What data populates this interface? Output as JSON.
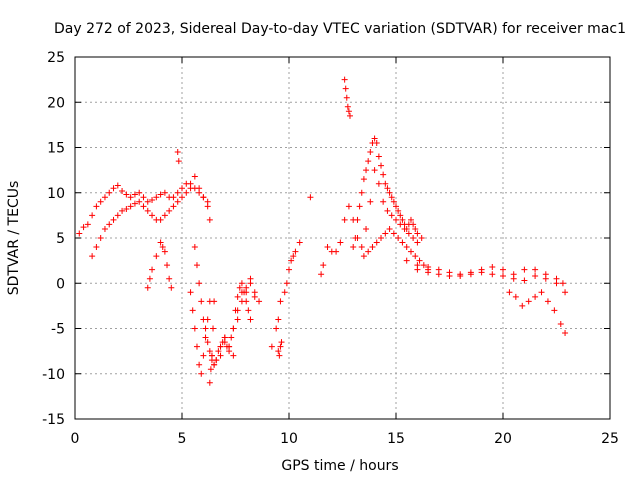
{
  "chart_data": {
    "type": "scatter",
    "title": "Day 272 of 2023, Sidereal Day-to-day VTEC variation (SDTVAR) for receiver mac1",
    "xlabel": "GPS time / hours",
    "ylabel": "SDTVAR / TECUs",
    "xlim": [
      0,
      25
    ],
    "ylim": [
      -15,
      25
    ],
    "xticks": [
      0,
      5,
      10,
      15,
      20,
      25
    ],
    "yticks": [
      -15,
      -10,
      -5,
      0,
      5,
      10,
      15,
      20,
      25
    ],
    "xtick_labels": [
      "0",
      "5",
      "10",
      "15",
      "20",
      "25"
    ],
    "ytick_labels": [
      "-15",
      "-10",
      "-5",
      "0",
      "5",
      "10",
      "15",
      "20",
      "25"
    ],
    "grid": true,
    "marker": "+",
    "color": "#ff0000",
    "series": [
      {
        "name": "SDTVAR",
        "x": [
          0.2,
          0.4,
          0.6,
          0.8,
          1.0,
          1.2,
          1.4,
          1.6,
          1.8,
          2.0,
          2.2,
          2.4,
          2.6,
          2.8,
          3.0,
          3.2,
          3.4,
          3.6,
          3.8,
          4.0,
          4.2,
          4.4,
          4.6,
          4.8,
          5.0,
          5.2,
          5.4,
          5.6,
          5.8,
          6.0,
          6.2,
          6.3,
          0.8,
          1.0,
          1.2,
          1.4,
          1.6,
          1.8,
          2.0,
          2.2,
          2.4,
          2.6,
          2.8,
          3.0,
          3.2,
          3.4,
          3.6,
          3.8,
          4.0,
          4.2,
          4.4,
          4.6,
          4.8,
          5.0,
          5.2,
          5.4,
          5.6,
          5.8,
          6.0,
          6.2,
          3.4,
          3.5,
          3.6,
          3.8,
          4.0,
          4.1,
          4.2,
          4.3,
          4.4,
          4.5,
          4.8,
          4.85,
          5.4,
          5.5,
          5.6,
          5.7,
          5.8,
          5.9,
          6.0,
          6.1,
          6.2,
          6.3,
          6.4,
          6.5,
          6.6,
          6.7,
          6.8,
          6.9,
          7.0,
          7.1,
          7.2,
          7.3,
          7.4,
          7.5,
          7.6,
          7.7,
          7.8,
          7.9,
          8.0,
          8.1,
          8.2,
          5.6,
          5.7,
          5.8,
          5.9,
          6.0,
          6.1,
          6.2,
          6.3,
          6.4,
          6.5,
          6.6,
          6.8,
          7.0,
          7.2,
          7.4,
          7.6,
          7.8,
          8.0,
          8.2,
          8.4,
          8.6,
          6.3,
          6.35,
          6.4,
          6.45,
          6.5,
          6.8,
          7.0,
          7.2,
          7.4,
          7.6,
          7.8,
          8.0,
          8.2,
          8.4,
          9.2,
          9.4,
          9.5,
          9.6,
          9.8,
          9.9,
          10.0,
          10.1,
          10.2,
          10.3,
          10.5,
          11.0,
          9.5,
          9.55,
          9.6,
          9.65,
          11.5,
          11.6,
          11.8,
          12.0,
          12.2,
          12.4,
          12.6,
          12.8,
          13.0,
          13.2,
          13.4,
          13.6,
          13.8,
          14.0,
          14.2,
          14.4,
          14.6,
          14.8,
          15.0,
          15.2,
          15.4,
          15.6,
          15.8,
          16.0,
          12.6,
          12.65,
          12.7,
          12.75,
          12.8,
          12.85,
          13.0,
          13.1,
          13.2,
          13.3,
          13.4,
          13.5,
          13.6,
          13.7,
          13.8,
          13.9,
          14.0,
          14.1,
          14.2,
          14.3,
          14.4,
          14.5,
          14.6,
          14.7,
          14.8,
          14.9,
          15.0,
          15.1,
          15.2,
          15.3,
          15.4,
          15.5,
          15.6,
          15.7,
          15.8,
          15.9,
          16.0,
          16.2,
          13.5,
          13.7,
          13.9,
          14.1,
          14.3,
          14.5,
          14.7,
          14.9,
          15.1,
          15.3,
          15.5,
          15.7,
          15.9,
          16.1,
          16.3,
          16.5,
          15.5,
          16.0,
          16.5,
          17.0,
          17.5,
          18.0,
          18.5,
          19.0,
          19.5,
          20.0,
          20.5,
          21.0,
          21.5,
          22.0,
          22.5,
          22.8,
          16.0,
          16.5,
          17.0,
          17.5,
          18.0,
          18.5,
          19.0,
          19.5,
          20.0,
          20.5,
          21.0,
          21.5,
          22.0,
          22.5,
          22.9,
          20.3,
          20.6,
          20.9,
          21.2,
          21.5,
          21.8,
          22.1,
          22.4,
          22.7,
          22.9
        ],
        "y": [
          5.5,
          6.2,
          6.5,
          7.5,
          8.5,
          9.0,
          9.5,
          10.0,
          10.5,
          10.8,
          10.2,
          9.8,
          9.5,
          9.8,
          10.0,
          9.5,
          9.0,
          9.2,
          9.5,
          9.8,
          10.0,
          9.5,
          9.5,
          10.0,
          10.5,
          11.0,
          11.0,
          11.8,
          10.5,
          9.5,
          8.5,
          7.0,
          3.0,
          4.0,
          5.0,
          6.0,
          6.5,
          7.0,
          7.5,
          8.0,
          8.2,
          8.5,
          8.8,
          9.0,
          8.5,
          8.0,
          7.5,
          7.0,
          7.0,
          7.5,
          8.0,
          8.5,
          9.0,
          9.5,
          10.0,
          10.5,
          10.5,
          10.0,
          9.5,
          9.0,
          -0.5,
          0.5,
          1.5,
          3.0,
          4.5,
          4.0,
          3.5,
          2.0,
          0.5,
          -0.5,
          14.5,
          13.5,
          -1.0,
          -3.0,
          -5.0,
          -7.0,
          -9.0,
          -10.0,
          -8.0,
          -6.0,
          -4.0,
          -2.0,
          -8.0,
          -9.0,
          -8.5,
          -7.5,
          -7.0,
          -6.5,
          -6.5,
          -7.0,
          -7.5,
          -6.0,
          -5.0,
          -3.0,
          -1.5,
          -0.5,
          0.0,
          -1.0,
          -2.0,
          -3.0,
          -4.0,
          4.0,
          2.0,
          0.0,
          -2.0,
          -4.0,
          -5.0,
          -6.5,
          -7.5,
          -8.5,
          -9.0,
          -8.5,
          -7.0,
          -6.0,
          -7.0,
          -8.0,
          -4.0,
          -1.0,
          -0.5,
          0.5,
          -1.0,
          -2.0,
          -11.0,
          -9.5,
          -8.0,
          -5.0,
          -2.0,
          -8.0,
          -6.0,
          -7.0,
          -5.0,
          -3.0,
          -2.0,
          -1.0,
          0.0,
          -1.5,
          -7.0,
          -5.0,
          -4.0,
          -2.0,
          -1.0,
          0.0,
          1.5,
          2.5,
          3.0,
          3.5,
          4.5,
          9.5,
          -7.5,
          -8.0,
          -7.0,
          -6.5,
          1.0,
          2.0,
          4.0,
          3.5,
          3.5,
          4.5,
          7.0,
          8.5,
          7.0,
          5.0,
          4.0,
          6.0,
          9.0,
          12.5,
          11.0,
          9.0,
          8.0,
          7.5,
          7.0,
          6.5,
          6.0,
          5.5,
          5.0,
          4.5,
          22.5,
          21.5,
          20.5,
          19.5,
          19.0,
          18.5,
          4.0,
          5.0,
          7.0,
          8.5,
          10.0,
          11.5,
          12.5,
          13.5,
          14.5,
          15.5,
          16.0,
          15.5,
          14.0,
          13.0,
          12.0,
          11.0,
          10.5,
          10.0,
          9.5,
          9.0,
          8.5,
          8.0,
          7.5,
          7.0,
          6.5,
          6.0,
          6.5,
          7.0,
          6.5,
          6.0,
          5.5,
          5.0,
          3.0,
          3.5,
          4.0,
          4.5,
          5.0,
          5.5,
          6.0,
          5.5,
          5.0,
          4.5,
          4.0,
          3.5,
          3.0,
          2.5,
          2.0,
          1.5,
          2.5,
          2.0,
          1.8,
          1.5,
          1.2,
          1.0,
          1.2,
          1.5,
          1.8,
          1.5,
          1.0,
          1.5,
          1.5,
          1.0,
          0.5,
          0.0,
          1.5,
          1.2,
          1.0,
          0.8,
          0.8,
          1.0,
          1.2,
          1.0,
          0.8,
          0.5,
          0.3,
          0.8,
          0.5,
          0.0,
          -1.0,
          -1.0,
          -1.5,
          -2.5,
          -2.0,
          -1.5,
          -1.0,
          -2.0,
          -3.0,
          -4.5,
          -5.5
        ]
      }
    ]
  }
}
